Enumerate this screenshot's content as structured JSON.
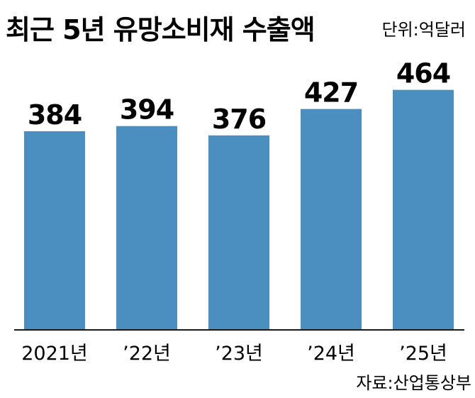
{
  "chart_data": {
    "type": "bar",
    "title": "최근 5년 유망소비재 수출액",
    "unit_label": "단위:억달러",
    "categories": [
      "2021년",
      "’22년",
      "’23년",
      "’24년",
      "’25년"
    ],
    "values": [
      384,
      394,
      376,
      427,
      464
    ],
    "ylim": [
      0,
      480
    ],
    "grid": false,
    "bar_color": "#4a8fc0",
    "source": "자료:산업통상부"
  }
}
